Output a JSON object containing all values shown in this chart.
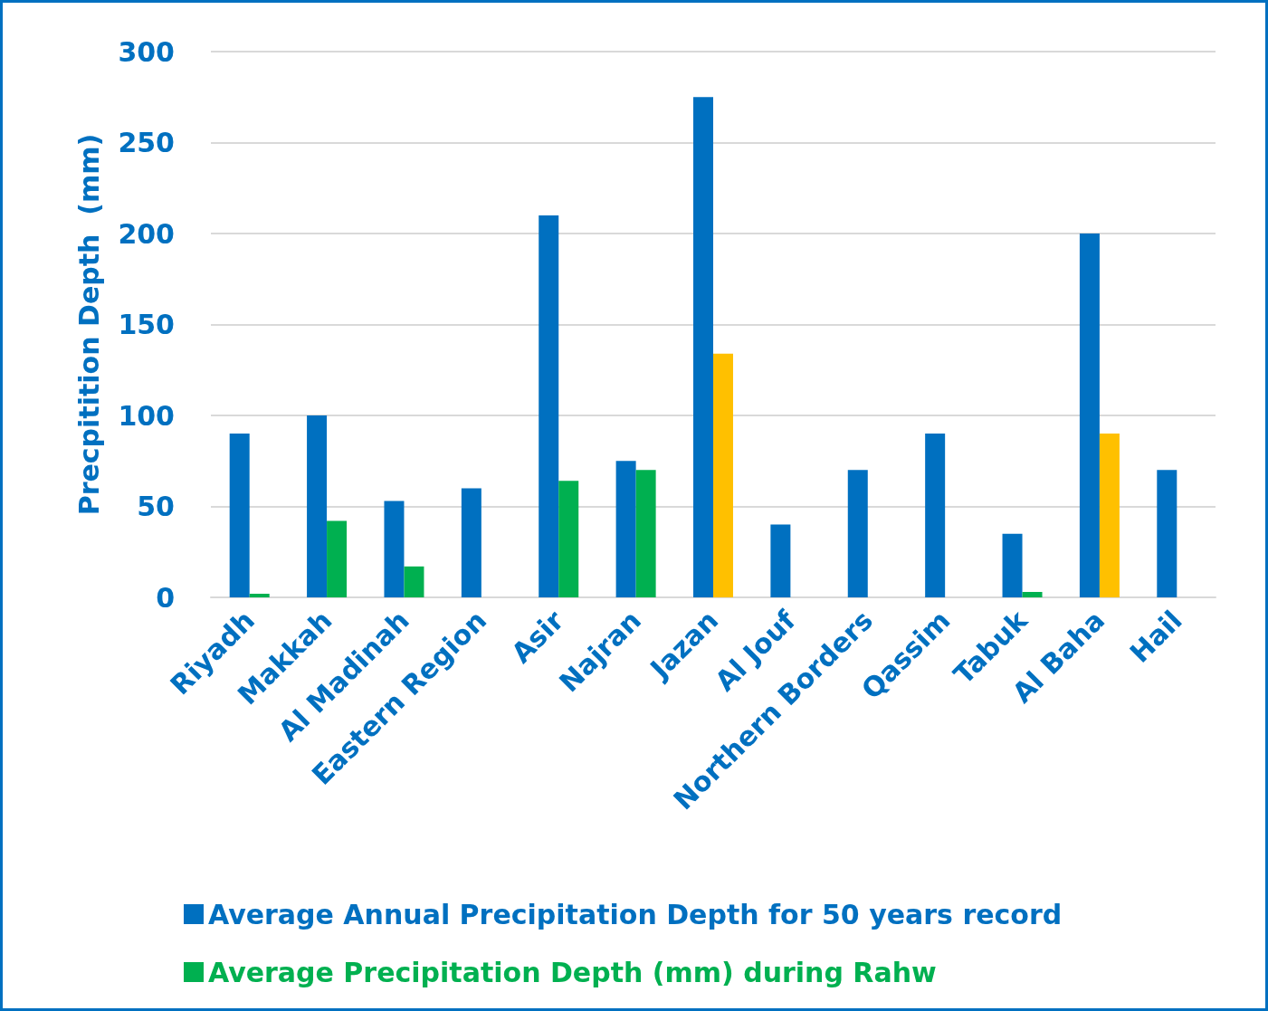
{
  "chart_data": {
    "type": "bar",
    "ylabel": "Precpitition Depth  (mm)",
    "categories": [
      "Riyadh",
      "Makkah",
      "Al Madinah",
      "Eastern Region",
      "Asir",
      "Najran",
      "Jazan",
      "Al Jouf",
      "Northern Borders",
      "Qassim",
      "Tabuk",
      "Al Baha",
      "Hail"
    ],
    "series": [
      {
        "name": "Average Annual Precipitation Depth for 50 years record",
        "color": "#0070c0",
        "values": [
          90,
          100,
          53,
          60,
          210,
          75,
          275,
          40,
          70,
          90,
          35,
          200,
          70
        ]
      },
      {
        "name": "Average Precipitation Depth (mm) during Rahw",
        "color": "#00b050",
        "colors": [
          "#00b050",
          "#00b050",
          "#00b050",
          "#00b050",
          "#00b050",
          "#00b050",
          "#ffc000",
          "#00b050",
          "#00b050",
          "#00b050",
          "#00b050",
          "#ffc000",
          "#00b050"
        ],
        "values": [
          2,
          42,
          17,
          0,
          64,
          70,
          134,
          0,
          0,
          0,
          3,
          90,
          0
        ]
      }
    ],
    "ylim": [
      0,
      300
    ],
    "yticks": [
      0,
      50,
      100,
      150,
      200,
      250,
      300
    ],
    "grid": "y",
    "legend": "bottom"
  }
}
